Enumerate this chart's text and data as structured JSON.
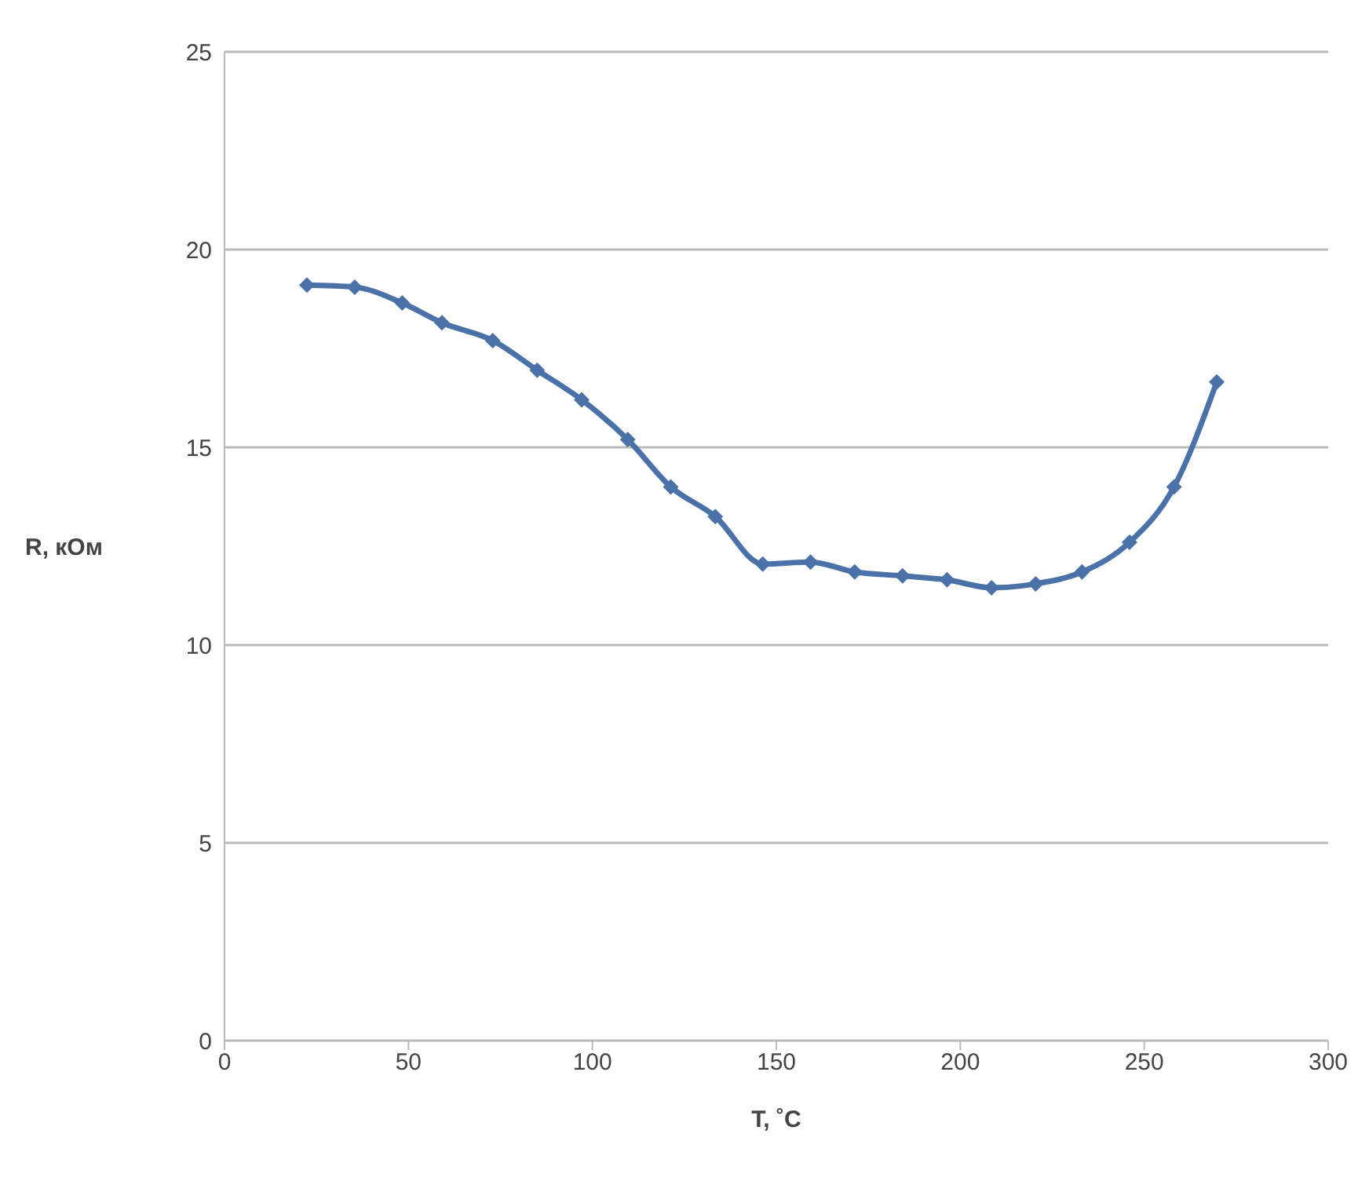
{
  "chart_data": {
    "type": "line",
    "xlabel": "T, ˚C",
    "ylabel": "R, кОм",
    "x": [
      22.4,
      35.4,
      48.3,
      59.1,
      72.9,
      85.0,
      97.1,
      109.6,
      121.3,
      133.4,
      146.3,
      159.3,
      171.3,
      184.3,
      196.4,
      208.5,
      220.5,
      233.1,
      246.0,
      258.1,
      269.7
    ],
    "series": [
      {
        "color": "#4a72a8",
        "values": [
          19.1,
          19.05,
          18.65,
          18.15,
          17.7,
          16.95,
          16.2,
          15.2,
          14.0,
          13.25,
          12.05,
          12.1,
          11.85,
          11.75,
          11.65,
          11.45,
          11.55,
          11.85,
          12.6,
          14.0,
          16.65
        ]
      }
    ],
    "xlim": [
      0,
      300
    ],
    "xticks": [
      0,
      50,
      100,
      150,
      200,
      250,
      300
    ],
    "ylim": [
      0,
      25
    ],
    "yticks": [
      0,
      5,
      10,
      15,
      20,
      25
    ],
    "grid": "y",
    "marker": "diamond",
    "line_style": "solid"
  }
}
